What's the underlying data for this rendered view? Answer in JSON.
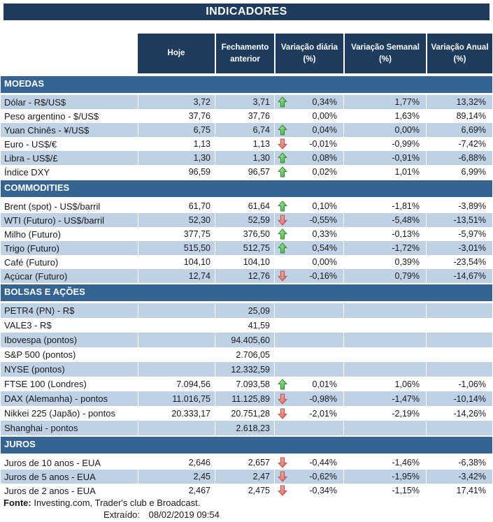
{
  "title": "INDICADORES",
  "colors": {
    "navy": "#1F3C5E",
    "band": "#366492",
    "stripe": "#BFD1E5",
    "arrow_up_green": "#3AA83A",
    "arrow_down_red": "#E05A55"
  },
  "chart_data": {
    "type": "table",
    "title": "INDICADORES",
    "columns": [
      "",
      "Hoje",
      "Fechamento anterior",
      "Variação diária (%)",
      "Variação Semanal (%)",
      "Variação Anual (%)"
    ],
    "sections": [
      {
        "name": "MOEDAS",
        "rows": [
          {
            "label": "Dólar - R$/US$",
            "hoje": "3,72",
            "fech": "3,71",
            "arrow": "up",
            "dia": "0,34%",
            "sem": "1,77%",
            "anual": "13,32%",
            "striped": true
          },
          {
            "label": "Peso argentino - $/US$",
            "hoje": "37,76",
            "fech": "37,76",
            "arrow": "",
            "dia": "0,00%",
            "sem": "1,63%",
            "anual": "89,14%",
            "striped": false
          },
          {
            "label": "Yuan Chinês - ¥/US$",
            "hoje": "6,75",
            "fech": "6,74",
            "arrow": "up",
            "dia": "0,04%",
            "sem": "0,00%",
            "anual": "6,69%",
            "striped": true
          },
          {
            "label": "Euro - US$/€",
            "hoje": "1,13",
            "fech": "1,13",
            "arrow": "down",
            "dia": "-0,01%",
            "sem": "-0,99%",
            "anual": "-7,42%",
            "striped": false
          },
          {
            "label": "Libra - US$/£",
            "hoje": "1,30",
            "fech": "1,30",
            "arrow": "up",
            "dia": "0,08%",
            "sem": "-0,91%",
            "anual": "-6,88%",
            "striped": true
          },
          {
            "label": "Índice DXY",
            "hoje": "96,59",
            "fech": "96,57",
            "arrow": "up",
            "dia": "0,02%",
            "sem": "1,01%",
            "anual": "6,99%",
            "striped": false
          }
        ]
      },
      {
        "name": "COMMODITIES",
        "rows": [
          {
            "label": "Brent (spot) - US$/barril",
            "hoje": "61,70",
            "fech": "61,64",
            "arrow": "up",
            "dia": "0,10%",
            "sem": "-1,81%",
            "anual": "-3,89%",
            "striped": false
          },
          {
            "label": "WTI (Futuro) - US$/barril",
            "hoje": "52,30",
            "fech": "52,59",
            "arrow": "down",
            "dia": "-0,55%",
            "sem": "-5,48%",
            "anual": "-13,51%",
            "striped": true
          },
          {
            "label": "Milho (Futuro)",
            "hoje": "377,75",
            "fech": "376,50",
            "arrow": "up",
            "dia": "0,33%",
            "sem": "-0,13%",
            "anual": "-5,97%",
            "striped": false
          },
          {
            "label": "Trigo (Futuro)",
            "hoje": "515,50",
            "fech": "512,75",
            "arrow": "up",
            "dia": "0,54%",
            "sem": "-1,72%",
            "anual": "-3,01%",
            "striped": true
          },
          {
            "label": "Café (Futuro)",
            "hoje": "104,10",
            "fech": "104,10",
            "arrow": "",
            "dia": "0,00%",
            "sem": "0,39%",
            "anual": "-23,54%",
            "striped": false
          },
          {
            "label": "Açúcar (Futuro)",
            "hoje": "12,74",
            "fech": "12,76",
            "arrow": "down",
            "dia": "-0,16%",
            "sem": "0,79%",
            "anual": "-14,67%",
            "striped": true
          }
        ]
      },
      {
        "name": "BOLSAS E AÇÕES",
        "rows": [
          {
            "label": "PETR4 (PN) - R$",
            "hoje": "",
            "fech": "25,09",
            "arrow": "",
            "dia": "",
            "sem": "",
            "anual": "",
            "striped": true
          },
          {
            "label": "VALE3 - R$",
            "hoje": "",
            "fech": "41,59",
            "arrow": "",
            "dia": "",
            "sem": "",
            "anual": "",
            "striped": false
          },
          {
            "label": "Ibovespa (pontos)",
            "hoje": "",
            "fech": "94.405,60",
            "arrow": "",
            "dia": "",
            "sem": "",
            "anual": "",
            "striped": true
          },
          {
            "label": "S&P 500 (pontos)",
            "hoje": "",
            "fech": "2.706,05",
            "arrow": "",
            "dia": "",
            "sem": "",
            "anual": "",
            "striped": false
          },
          {
            "label": "NYSE (pontos)",
            "hoje": "",
            "fech": "12.332,59",
            "arrow": "",
            "dia": "",
            "sem": "",
            "anual": "",
            "striped": true
          },
          {
            "label": "FTSE 100 (Londres)",
            "hoje": "7.094,56",
            "fech": "7.093,58",
            "arrow": "up",
            "dia": "0,01%",
            "sem": "1,06%",
            "anual": "-1,06%",
            "striped": false
          },
          {
            "label": "DAX (Alemanha) - pontos",
            "hoje": "11.016,75",
            "fech": "11.125,89",
            "arrow": "down",
            "dia": "-0,98%",
            "sem": "-1,47%",
            "anual": "-10,14%",
            "striped": true
          },
          {
            "label": "Nikkei 225 (Japão) - pontos",
            "hoje": "20.333,17",
            "fech": "20.751,28",
            "arrow": "down",
            "dia": "-2,01%",
            "sem": "-2,19%",
            "anual": "-14,26%",
            "striped": false
          },
          {
            "label": "Shanghai - pontos",
            "hoje": "",
            "fech": "2.618,23",
            "arrow": "",
            "dia": "",
            "sem": "",
            "anual": "",
            "striped": true
          }
        ]
      },
      {
        "name": "JUROS",
        "rows": [
          {
            "label": "Juros de 10 anos - EUA",
            "hoje": "2,646",
            "fech": "2,657",
            "arrow": "down",
            "dia": "-0,44%",
            "sem": "-1,46%",
            "anual": "-6,38%",
            "striped": false
          },
          {
            "label": "Juros de 5 anos - EUA",
            "hoje": "2,45",
            "fech": "2,47",
            "arrow": "down",
            "dia": "-0,62%",
            "sem": "-1,95%",
            "anual": "-3,42%",
            "striped": true
          },
          {
            "label": "Juros de 2 anos - EUA",
            "hoje": "2,467",
            "fech": "2,475",
            "arrow": "down",
            "dia": "-0,34%",
            "sem": "-1,15%",
            "anual": "17,41%",
            "striped": false
          }
        ]
      }
    ]
  },
  "footer": {
    "fonte_label": "Fonte:",
    "fonte_text": "Investing.com, Trader's club e Broadcast.",
    "extraido_label": "Extraído:",
    "extraido_value": "08/02/2019 09:54"
  }
}
